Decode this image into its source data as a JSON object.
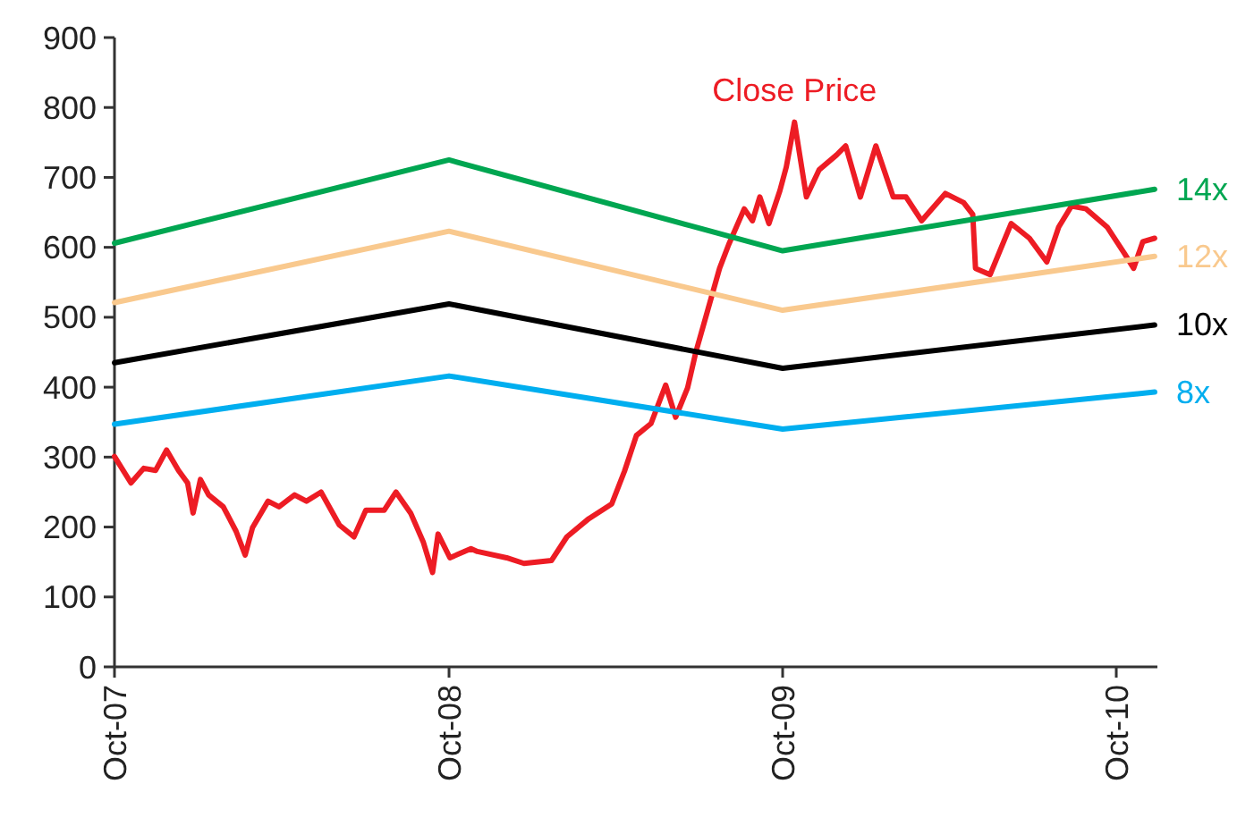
{
  "chart_data": {
    "type": "line",
    "xlim": [
      "2007-10-01",
      "2010-11-15"
    ],
    "xticks": [
      {
        "value": "2007-10-01",
        "label": "Oct-07"
      },
      {
        "value": "2008-10-01",
        "label": "Oct-08"
      },
      {
        "value": "2009-10-01",
        "label": "Oct-09"
      },
      {
        "value": "2010-10-01",
        "label": "Oct-10"
      }
    ],
    "ylim": [
      0,
      900
    ],
    "yticks": [
      0,
      100,
      200,
      300,
      400,
      500,
      600,
      700,
      800,
      900
    ],
    "grid": false,
    "marker": "none",
    "line_style": "solid",
    "series": [
      {
        "name": "Close Price",
        "color": "#ed1c24",
        "x": [
          "2007-10-01",
          "2007-10-19",
          "2007-11-02",
          "2007-11-15",
          "2007-11-27",
          "2007-12-10",
          "2007-12-20",
          "2007-12-26",
          "2008-01-03",
          "2008-01-12",
          "2008-01-28",
          "2008-02-11",
          "2008-02-21",
          "2008-02-29",
          "2008-03-17",
          "2008-03-29",
          "2008-04-15",
          "2008-04-28",
          "2008-05-14",
          "2008-06-03",
          "2008-06-19",
          "2008-07-02",
          "2008-07-22",
          "2008-08-04",
          "2008-08-20",
          "2008-09-03",
          "2008-09-13",
          "2008-09-19",
          "2008-10-02",
          "2008-10-25",
          "2008-11-01",
          "2008-12-03",
          "2008-12-22",
          "2009-01-21",
          "2009-02-07",
          "2009-03-03",
          "2009-03-28",
          "2009-04-11",
          "2009-04-24",
          "2009-05-10",
          "2009-05-26",
          "2009-06-06",
          "2009-06-19",
          "2009-06-28",
          "2009-07-11",
          "2009-07-24",
          "2009-08-03",
          "2009-08-20",
          "2009-08-29",
          "2009-09-06",
          "2009-09-16",
          "2009-09-28",
          "2009-10-05",
          "2009-10-14",
          "2009-10-27",
          "2009-11-10",
          "2009-11-29",
          "2009-12-09",
          "2009-12-25",
          "2010-01-11",
          "2010-01-30",
          "2010-02-13",
          "2010-03-02",
          "2010-03-28",
          "2010-04-17",
          "2010-04-27",
          "2010-04-30",
          "2010-05-16",
          "2010-06-08",
          "2010-06-28",
          "2010-07-17",
          "2010-07-30",
          "2010-08-13",
          "2010-08-29",
          "2010-09-21",
          "2010-10-10",
          "2010-10-20",
          "2010-10-30",
          "2010-11-12"
        ],
        "values": [
          301,
          263,
          284,
          281,
          310,
          281,
          263,
          220,
          268,
          246,
          229,
          194,
          160,
          199,
          237,
          229,
          246,
          237,
          250,
          203,
          186,
          224,
          224,
          250,
          220,
          178,
          135,
          190,
          156,
          169,
          165,
          156,
          148,
          152,
          186,
          212,
          233,
          280,
          331,
          348,
          403,
          357,
          399,
          450,
          510,
          570,
          604,
          655,
          638,
          672,
          634,
          681,
          715,
          779,
          672,
          711,
          732,
          745,
          672,
          745,
          672,
          672,
          638,
          677,
          664,
          647,
          570,
          561,
          634,
          613,
          579,
          629,
          659,
          655,
          629,
          591,
          570,
          608,
          613
        ]
      },
      {
        "name": "14x",
        "color": "#00a651",
        "x": [
          "2007-10-01",
          "2008-10-01",
          "2009-10-01",
          "2010-11-12"
        ],
        "values": [
          606,
          725,
          595,
          683
        ]
      },
      {
        "name": "12x",
        "color": "#f9c98e",
        "x": [
          "2007-10-01",
          "2008-10-01",
          "2009-10-01",
          "2010-11-12"
        ],
        "values": [
          521,
          623,
          510,
          587
        ]
      },
      {
        "name": "10x",
        "color": "#000000",
        "x": [
          "2007-10-01",
          "2008-10-01",
          "2009-10-01",
          "2010-11-12"
        ],
        "values": [
          435,
          519,
          427,
          489
        ]
      },
      {
        "name": "8x",
        "color": "#00aeef",
        "x": [
          "2007-10-01",
          "2008-10-01",
          "2009-10-01",
          "2010-11-12"
        ],
        "values": [
          347,
          416,
          340,
          393
        ]
      }
    ]
  }
}
